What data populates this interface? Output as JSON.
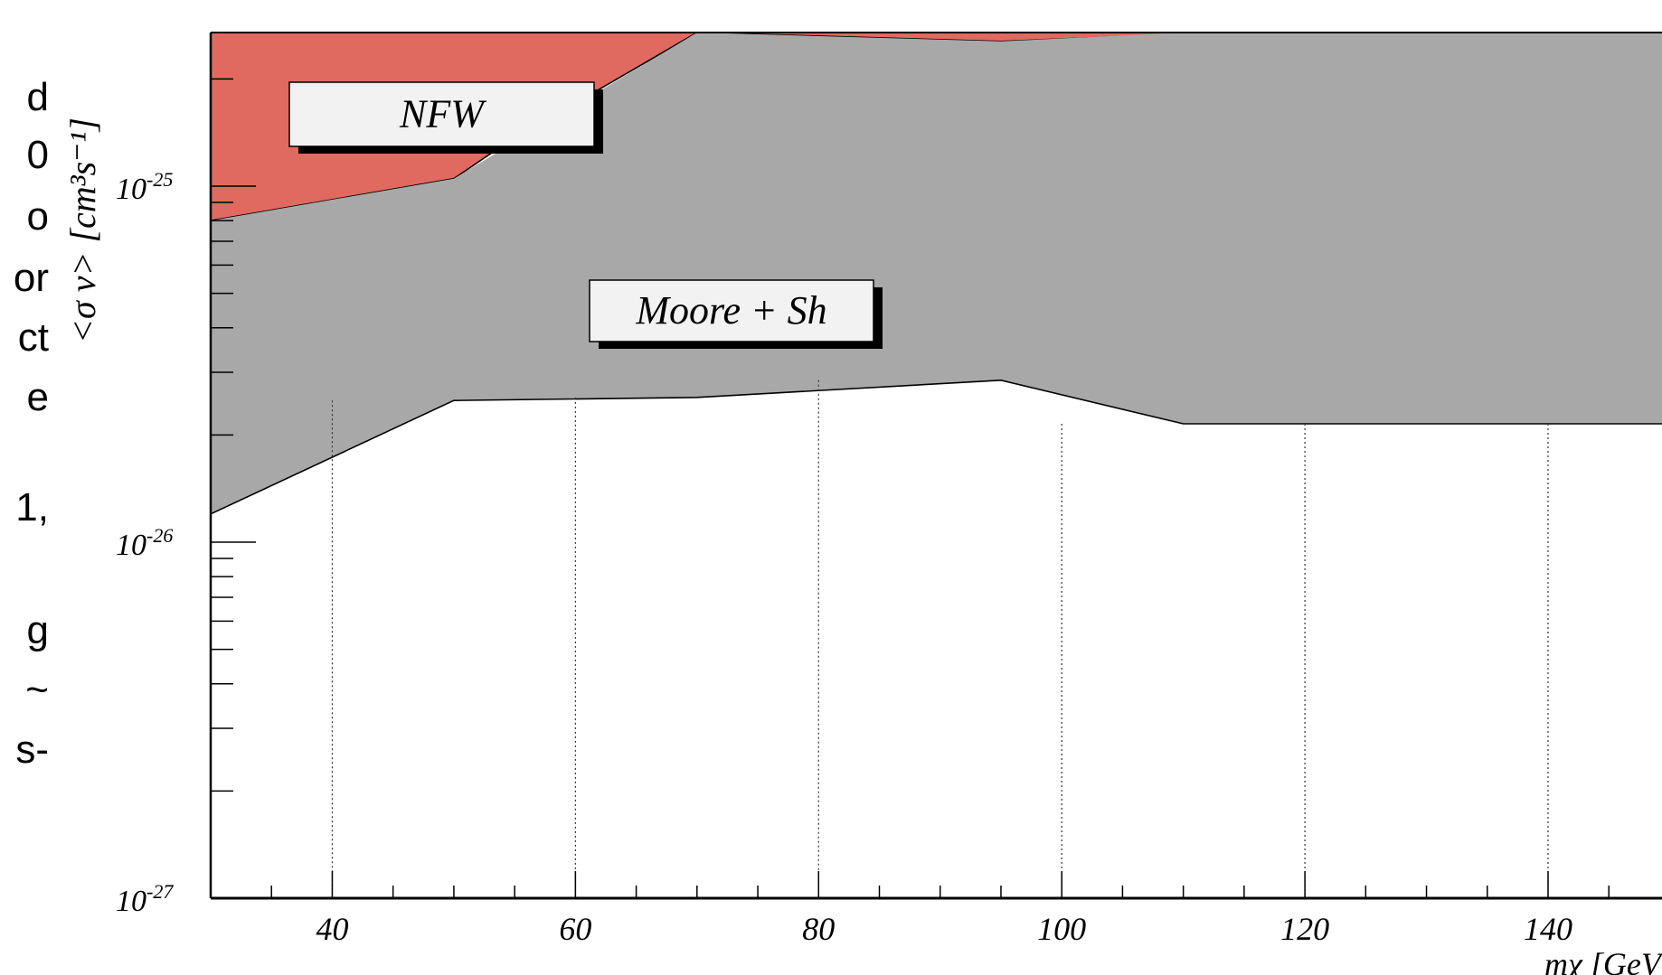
{
  "left_text_fragments": [
    "d",
    "0",
    "o",
    "or",
    "ct",
    "e",
    "1,",
    "g",
    "~",
    "s-"
  ],
  "chart_data": {
    "type": "area",
    "xlabel": "mχ [GeV",
    "ylabel": "<σ v> [cm³s⁻¹]",
    "xlim": [
      30,
      150
    ],
    "ylim": [
      1e-27,
      3e-25
    ],
    "yscale": "log",
    "x_ticks": [
      "40",
      "60",
      "80",
      "100",
      "120",
      "140"
    ],
    "x_tick_values": [
      40,
      60,
      80,
      100,
      120,
      140
    ],
    "y_ticks": [
      {
        "value": 1e-27,
        "base": "10",
        "exp": "-27"
      },
      {
        "value": 1e-26,
        "base": "10",
        "exp": "-26"
      },
      {
        "value": 1e-25,
        "base": "10",
        "exp": "-25"
      }
    ],
    "grid": "vertical dotted at major x ticks",
    "series": [
      {
        "name": "NFW",
        "color": "#e06a5f",
        "x": [
          30,
          50,
          54,
          70,
          95,
          113,
          150
        ],
        "lower": [
          8e-26,
          1.05e-25,
          1.3e-25,
          2.7e-25,
          2.55e-25,
          3e-25,
          3e-25
        ],
        "upper": [
          3e-25,
          3e-25,
          3e-25,
          3e-25,
          3e-25,
          3e-25,
          3e-25
        ]
      },
      {
        "name": "Moore + Sh",
        "color": "#a8a8a8",
        "x": [
          30,
          50,
          70,
          95,
          110,
          150
        ],
        "lower": [
          1.2e-26,
          2.5e-26,
          2.55e-26,
          2.85e-26,
          2.15e-26,
          2.15e-26
        ],
        "upper": [
          8e-26,
          1.05e-25,
          2.7e-25,
          2.55e-25,
          3e-25,
          3e-25
        ]
      }
    ],
    "labels": [
      {
        "text": "NFW",
        "series": "NFW"
      },
      {
        "text": "Moore + Sh",
        "series": "Moore + Sh"
      }
    ]
  }
}
